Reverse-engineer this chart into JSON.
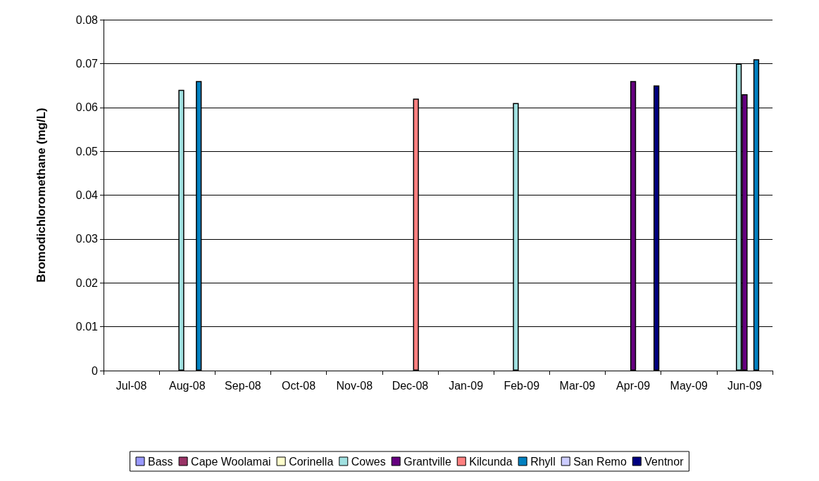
{
  "chart_data": {
    "type": "bar",
    "ylabel": "Bromodichloromethane (mg/L)",
    "categories": [
      "Jul-08",
      "Aug-08",
      "Sep-08",
      "Oct-08",
      "Nov-08",
      "Dec-08",
      "Jan-09",
      "Feb-09",
      "Mar-09",
      "Apr-09",
      "May-09",
      "Jun-09"
    ],
    "series": [
      {
        "name": "Bass",
        "color": "#9999ff",
        "values": [
          null,
          null,
          null,
          null,
          null,
          null,
          null,
          null,
          null,
          null,
          null,
          null
        ]
      },
      {
        "name": "Cape Woolamai",
        "color": "#993366",
        "values": [
          null,
          null,
          null,
          null,
          null,
          null,
          null,
          null,
          null,
          null,
          null,
          null
        ]
      },
      {
        "name": "Corinella",
        "color": "#ffffcc",
        "values": [
          null,
          null,
          null,
          null,
          null,
          null,
          null,
          null,
          null,
          null,
          null,
          null
        ]
      },
      {
        "name": "Cowes",
        "color": "#a0e0e0",
        "values": [
          null,
          0.064,
          null,
          null,
          null,
          null,
          null,
          0.061,
          null,
          null,
          null,
          0.07
        ]
      },
      {
        "name": "Grantville",
        "color": "#660080",
        "values": [
          null,
          null,
          null,
          null,
          null,
          null,
          null,
          null,
          null,
          0.066,
          null,
          0.063
        ]
      },
      {
        "name": "Kilcunda",
        "color": "#ff8080",
        "values": [
          null,
          null,
          null,
          null,
          null,
          0.062,
          null,
          null,
          null,
          null,
          null,
          null
        ]
      },
      {
        "name": "Rhyll",
        "color": "#0080c0",
        "values": [
          null,
          0.066,
          null,
          null,
          null,
          null,
          null,
          null,
          null,
          null,
          null,
          0.071
        ]
      },
      {
        "name": "San Remo",
        "color": "#ccccff",
        "values": [
          null,
          null,
          null,
          null,
          null,
          null,
          null,
          null,
          null,
          null,
          null,
          null
        ]
      },
      {
        "name": "Ventnor",
        "color": "#000080",
        "values": [
          null,
          null,
          null,
          null,
          null,
          null,
          null,
          null,
          null,
          0.065,
          null,
          null
        ]
      }
    ],
    "ylim": [
      0,
      0.08
    ],
    "yticks": [
      0,
      0.01,
      0.02,
      0.03,
      0.04,
      0.05,
      0.06,
      0.07,
      0.08
    ],
    "grid": "y",
    "legend": "bottom"
  }
}
